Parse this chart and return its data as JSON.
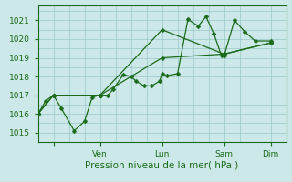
{
  "xlabel": "Pression niveau de la mer( hPa )",
  "ylim": [
    1014.5,
    1021.8
  ],
  "xlim": [
    0,
    96
  ],
  "yticks": [
    1015,
    1016,
    1017,
    1018,
    1019,
    1020,
    1021
  ],
  "background_color": "#cde8e8",
  "grid_color": "#9ac8c8",
  "line_color": "#1a6b1a",
  "markersize": 2.5,
  "linewidth": 0.9,
  "x_tick_positions": [
    6,
    24,
    48,
    72,
    90
  ],
  "x_tick_labels": [
    "",
    "Ven",
    "Lun",
    "Sam",
    "Dim"
  ],
  "series1_x": [
    0,
    3,
    6,
    9,
    14,
    18,
    21,
    24,
    27,
    29,
    33,
    36,
    38,
    41,
    44,
    47,
    48,
    50,
    54,
    58,
    62,
    65,
    68,
    71,
    72,
    76,
    80,
    84,
    90
  ],
  "series1_y": [
    1016.0,
    1016.7,
    1017.0,
    1016.3,
    1015.1,
    1015.6,
    1016.9,
    1017.0,
    1017.0,
    1017.3,
    1018.1,
    1018.0,
    1017.75,
    1017.5,
    1017.5,
    1017.75,
    1018.15,
    1018.05,
    1018.15,
    1021.05,
    1020.7,
    1021.2,
    1020.3,
    1019.1,
    1019.1,
    1021.0,
    1020.4,
    1019.9,
    1019.9
  ],
  "series2_x": [
    0,
    6,
    24,
    48,
    72,
    90
  ],
  "series2_y": [
    1016.0,
    1017.0,
    1017.0,
    1019.0,
    1019.2,
    1019.8
  ],
  "series3_x": [
    0,
    6,
    24,
    48,
    72,
    90
  ],
  "series3_y": [
    1016.0,
    1017.0,
    1017.0,
    1020.5,
    1019.2,
    1019.8
  ]
}
